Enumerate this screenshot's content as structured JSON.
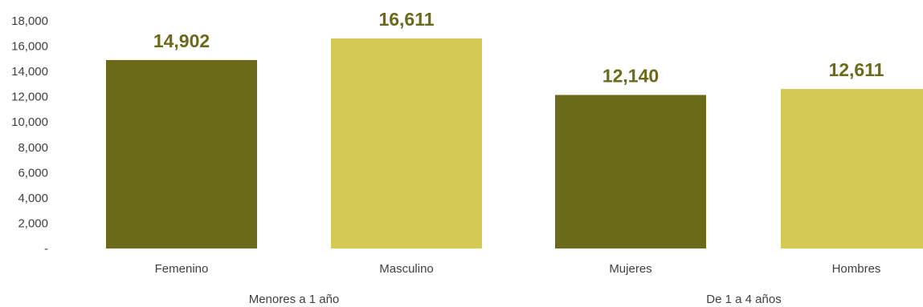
{
  "chart_data": {
    "type": "bar",
    "title": "",
    "xlabel": "",
    "ylabel": "",
    "ylim": [
      0,
      18000
    ],
    "yticks": [
      {
        "value": 0,
        "label": "-"
      },
      {
        "value": 2000,
        "label": "2,000"
      },
      {
        "value": 4000,
        "label": "4,000"
      },
      {
        "value": 6000,
        "label": "6,000"
      },
      {
        "value": 8000,
        "label": "8,000"
      },
      {
        "value": 10000,
        "label": "10,000"
      },
      {
        "value": 12000,
        "label": "12,000"
      },
      {
        "value": 14000,
        "label": "14,000"
      },
      {
        "value": 16000,
        "label": "16,000"
      },
      {
        "value": 18000,
        "label": "18,000"
      }
    ],
    "grid": false,
    "legend": "none",
    "categories": [
      "Femenino",
      "Masculino",
      "Mujeres",
      "Hombres"
    ],
    "values": [
      14902,
      16611,
      12140,
      12611
    ],
    "value_labels": [
      "14,902",
      "16,611",
      "12,140",
      "12,611"
    ],
    "bar_colors": [
      "#6b6a1b",
      "#d4c955",
      "#6b6a1b",
      "#d4c955"
    ],
    "groups": [
      {
        "label": "Menores a 1 año",
        "categories": [
          "Femenino",
          "Masculino"
        ]
      },
      {
        "label": "De 1 a 4 años",
        "categories": [
          "Mujeres",
          "Hombres"
        ]
      }
    ],
    "label_color": "#6b6a1b",
    "text_color": "#404040"
  }
}
